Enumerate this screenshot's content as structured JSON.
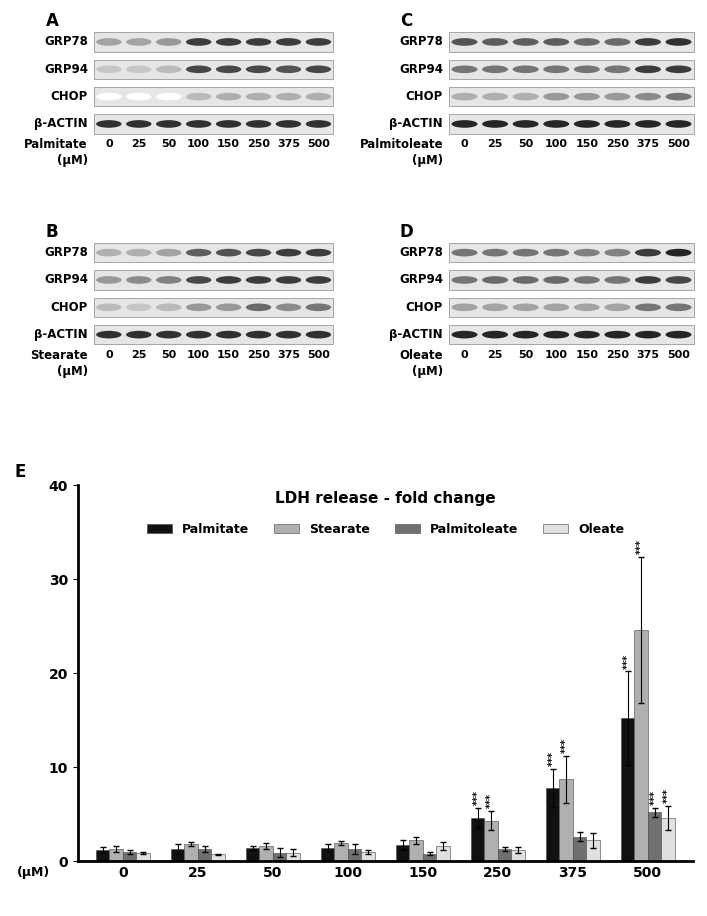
{
  "panels": [
    {
      "type": "western_blot",
      "label": "A",
      "treatment": "Palmitate",
      "unit": "(μM)",
      "lanes": [
        0,
        25,
        50,
        100,
        150,
        250,
        375,
        500
      ],
      "rows": [
        {
          "name": "GRP78",
          "intensity": [
            0.4,
            0.4,
            0.45,
            0.85,
            0.85,
            0.85,
            0.85,
            0.85
          ]
        },
        {
          "name": "GRP94",
          "intensity": [
            0.25,
            0.25,
            0.3,
            0.8,
            0.8,
            0.8,
            0.75,
            0.8
          ]
        },
        {
          "name": "CHOP",
          "intensity": [
            0.0,
            0.0,
            0.0,
            0.3,
            0.35,
            0.35,
            0.35,
            0.35
          ]
        },
        {
          "name": "β-ACTIN",
          "intensity": [
            0.9,
            0.9,
            0.9,
            0.9,
            0.9,
            0.9,
            0.9,
            0.9
          ]
        }
      ]
    },
    {
      "type": "western_blot",
      "label": "B",
      "treatment": "Stearate",
      "unit": "(μM)",
      "lanes": [
        0,
        25,
        50,
        100,
        150,
        250,
        375,
        500
      ],
      "rows": [
        {
          "name": "GRP78",
          "intensity": [
            0.35,
            0.35,
            0.4,
            0.7,
            0.75,
            0.8,
            0.85,
            0.85
          ]
        },
        {
          "name": "GRP94",
          "intensity": [
            0.45,
            0.5,
            0.55,
            0.8,
            0.85,
            0.85,
            0.85,
            0.85
          ]
        },
        {
          "name": "CHOP",
          "intensity": [
            0.3,
            0.25,
            0.3,
            0.45,
            0.45,
            0.65,
            0.5,
            0.6
          ]
        },
        {
          "name": "β-ACTIN",
          "intensity": [
            0.9,
            0.9,
            0.9,
            0.9,
            0.9,
            0.9,
            0.9,
            0.9
          ]
        }
      ]
    },
    {
      "type": "western_blot",
      "label": "C",
      "treatment": "Palmitoleate",
      "unit": "(μM)",
      "lanes": [
        0,
        25,
        50,
        100,
        150,
        250,
        375,
        500
      ],
      "rows": [
        {
          "name": "GRP78",
          "intensity": [
            0.75,
            0.7,
            0.7,
            0.7,
            0.65,
            0.65,
            0.85,
            0.9
          ]
        },
        {
          "name": "GRP94",
          "intensity": [
            0.6,
            0.6,
            0.6,
            0.6,
            0.6,
            0.6,
            0.85,
            0.85
          ]
        },
        {
          "name": "CHOP",
          "intensity": [
            0.35,
            0.35,
            0.35,
            0.45,
            0.45,
            0.45,
            0.5,
            0.6
          ]
        },
        {
          "name": "β-ACTIN",
          "intensity": [
            0.95,
            0.95,
            0.95,
            0.95,
            0.95,
            0.95,
            0.95,
            0.95
          ]
        }
      ]
    },
    {
      "type": "western_blot",
      "label": "D",
      "treatment": "Oleate",
      "unit": "(μM)",
      "lanes": [
        0,
        25,
        50,
        100,
        150,
        250,
        375,
        500
      ],
      "rows": [
        {
          "name": "GRP78",
          "intensity": [
            0.6,
            0.6,
            0.6,
            0.6,
            0.55,
            0.55,
            0.85,
            0.95
          ]
        },
        {
          "name": "GRP94",
          "intensity": [
            0.6,
            0.65,
            0.65,
            0.65,
            0.6,
            0.6,
            0.85,
            0.8
          ]
        },
        {
          "name": "CHOP",
          "intensity": [
            0.4,
            0.4,
            0.4,
            0.4,
            0.4,
            0.4,
            0.6,
            0.6
          ]
        },
        {
          "name": "β-ACTIN",
          "intensity": [
            0.95,
            0.95,
            0.95,
            0.95,
            0.95,
            0.95,
            0.95,
            0.95
          ]
        }
      ]
    }
  ],
  "chart_data": {
    "type": "bar",
    "panel": "E",
    "title": "LDH release - fold change",
    "x_label": "(μM)",
    "categories": [
      "0",
      "25",
      "50",
      "100",
      "150",
      "250",
      "375",
      "500"
    ],
    "series": [
      {
        "name": "Palmitate",
        "color": "#111111",
        "values": [
          1.2,
          1.3,
          1.4,
          1.4,
          1.7,
          4.6,
          7.8,
          15.2
        ],
        "errors": [
          0.3,
          0.5,
          0.2,
          0.4,
          0.5,
          1.1,
          2.0,
          5.0
        ],
        "significance": [
          null,
          null,
          null,
          null,
          null,
          "***",
          "***",
          "***"
        ]
      },
      {
        "name": "Stearate",
        "color": "#b0b0b0",
        "values": [
          1.3,
          1.8,
          1.6,
          1.9,
          2.2,
          4.3,
          8.7,
          24.6
        ],
        "errors": [
          0.3,
          0.2,
          0.3,
          0.2,
          0.4,
          1.0,
          2.5,
          7.8
        ],
        "significance": [
          null,
          null,
          null,
          null,
          null,
          "***",
          "***",
          "***"
        ]
      },
      {
        "name": "Palmitoleate",
        "color": "#707070",
        "values": [
          1.0,
          1.3,
          0.9,
          1.3,
          0.8,
          1.3,
          2.6,
          5.2
        ],
        "errors": [
          0.2,
          0.3,
          0.5,
          0.5,
          0.2,
          0.2,
          0.5,
          0.5
        ],
        "significance": [
          null,
          null,
          null,
          null,
          null,
          null,
          null,
          "***"
        ]
      },
      {
        "name": "Oleate",
        "color": "#e0e0e0",
        "values": [
          0.9,
          0.7,
          0.9,
          1.0,
          1.6,
          1.2,
          2.2,
          4.6
        ],
        "errors": [
          0.1,
          0.1,
          0.4,
          0.2,
          0.4,
          0.3,
          0.8,
          1.3
        ],
        "significance": [
          null,
          null,
          null,
          null,
          null,
          null,
          null,
          "***"
        ]
      }
    ],
    "ylim": [
      0,
      40
    ],
    "yticks": [
      0,
      10,
      20,
      30,
      40
    ],
    "legend": "upper center"
  }
}
